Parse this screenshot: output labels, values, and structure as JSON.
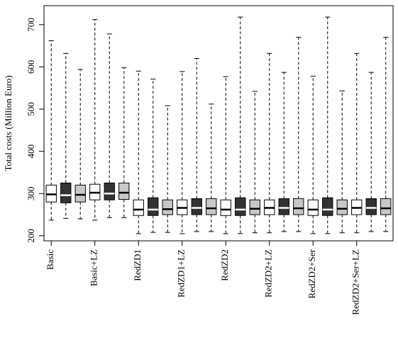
{
  "chart_data": {
    "type": "boxplot",
    "title": "",
    "ylabel": "Total costs (Million Euro)",
    "xlabel": "",
    "ylim": [
      188,
      745
    ],
    "yticks": [
      200,
      300,
      400,
      500,
      600,
      700
    ],
    "grid": false,
    "legend": "none",
    "box_width": 0.7,
    "colors": {
      "white": "#ffffff",
      "dark": "#333333",
      "gray": "#c8c8c8",
      "outline": "#000000"
    },
    "group_labels": [
      "Basic",
      "Basic+LZ",
      "RedZD1",
      "RedZD1+LZ",
      "RedZD2",
      "RedZD2+LZ",
      "RedZD2+Ser",
      "RedZD2+Ser+LZ"
    ],
    "boxes": [
      {
        "x": 1,
        "color": "white",
        "min": 237,
        "q1": 280,
        "median": 298,
        "q3": 320,
        "max": 662
      },
      {
        "x": 2,
        "color": "dark",
        "min": 241,
        "q1": 278,
        "median": 296,
        "q3": 325,
        "max": 632
      },
      {
        "x": 3,
        "color": "gray",
        "min": 240,
        "q1": 280,
        "median": 297,
        "q3": 320,
        "max": 594
      },
      {
        "x": 4,
        "color": "white",
        "min": 237,
        "q1": 285,
        "median": 302,
        "q3": 322,
        "max": 712
      },
      {
        "x": 5,
        "color": "dark",
        "min": 243,
        "q1": 285,
        "median": 300,
        "q3": 325,
        "max": 678
      },
      {
        "x": 6,
        "color": "gray",
        "min": 243,
        "q1": 286,
        "median": 302,
        "q3": 325,
        "max": 598
      },
      {
        "x": 7,
        "color": "white",
        "min": 205,
        "q1": 248,
        "median": 262,
        "q3": 285,
        "max": 590
      },
      {
        "x": 8,
        "color": "dark",
        "min": 208,
        "q1": 248,
        "median": 262,
        "q3": 290,
        "max": 571
      },
      {
        "x": 9,
        "color": "gray",
        "min": 208,
        "q1": 250,
        "median": 263,
        "q3": 285,
        "max": 508
      },
      {
        "x": 10,
        "color": "white",
        "min": 205,
        "q1": 250,
        "median": 266,
        "q3": 285,
        "max": 589
      },
      {
        "x": 11,
        "color": "dark",
        "min": 210,
        "q1": 250,
        "median": 266,
        "q3": 288,
        "max": 620
      },
      {
        "x": 12,
        "color": "gray",
        "min": 210,
        "q1": 250,
        "median": 265,
        "q3": 288,
        "max": 512
      },
      {
        "x": 13,
        "color": "white",
        "min": 205,
        "q1": 248,
        "median": 262,
        "q3": 285,
        "max": 577
      },
      {
        "x": 14,
        "color": "dark",
        "min": 205,
        "q1": 248,
        "median": 262,
        "q3": 290,
        "max": 718
      },
      {
        "x": 15,
        "color": "gray",
        "min": 207,
        "q1": 250,
        "median": 264,
        "q3": 285,
        "max": 542
      },
      {
        "x": 16,
        "color": "white",
        "min": 207,
        "q1": 250,
        "median": 266,
        "q3": 285,
        "max": 632
      },
      {
        "x": 17,
        "color": "dark",
        "min": 210,
        "q1": 250,
        "median": 266,
        "q3": 288,
        "max": 587
      },
      {
        "x": 18,
        "color": "gray",
        "min": 210,
        "q1": 250,
        "median": 265,
        "q3": 288,
        "max": 670
      },
      {
        "x": 19,
        "color": "white",
        "min": 205,
        "q1": 248,
        "median": 262,
        "q3": 285,
        "max": 578
      },
      {
        "x": 20,
        "color": "dark",
        "min": 205,
        "q1": 248,
        "median": 262,
        "q3": 290,
        "max": 718
      },
      {
        "x": 21,
        "color": "gray",
        "min": 207,
        "q1": 250,
        "median": 264,
        "q3": 285,
        "max": 543
      },
      {
        "x": 22,
        "color": "white",
        "min": 207,
        "q1": 250,
        "median": 266,
        "q3": 285,
        "max": 632
      },
      {
        "x": 23,
        "color": "dark",
        "min": 210,
        "q1": 250,
        "median": 266,
        "q3": 288,
        "max": 587
      },
      {
        "x": 24,
        "color": "gray",
        "min": 210,
        "q1": 250,
        "median": 265,
        "q3": 288,
        "max": 670
      }
    ]
  }
}
